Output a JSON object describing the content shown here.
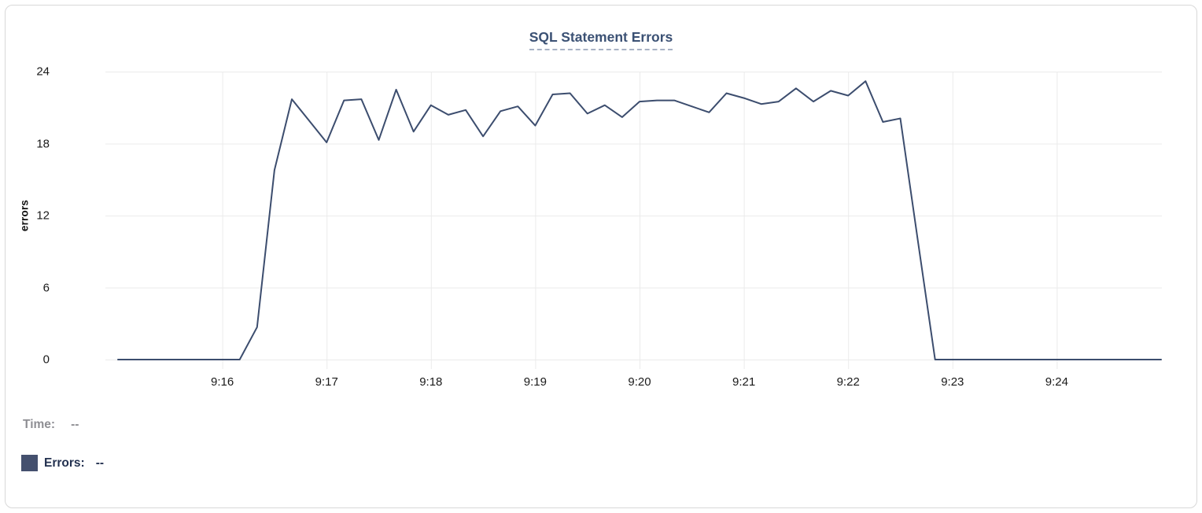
{
  "panel": {
    "title": "SQL Statement Errors"
  },
  "colors": {
    "line": "#3c4d6e",
    "grid": "#ebebeb",
    "title": "#3b5174",
    "title_underline": "#a8b2c4",
    "tick_text": "#1a1a1a",
    "tooltip_time_text": "#8e8e93",
    "tooltip_errors_text": "#233150",
    "legend_swatch": "#44506e",
    "card_border": "#d8d8d8"
  },
  "tooltip": {
    "time_label": "Time:",
    "time_value": "--",
    "errors_label": "Errors:",
    "errors_value": "--"
  },
  "chart_data": {
    "type": "line",
    "title": "SQL Statement Errors",
    "xlabel": "",
    "ylabel": "errors",
    "grid": true,
    "legend_position": "bottom-left",
    "ylim": [
      0,
      24
    ],
    "y_ticks": [
      0,
      6,
      12,
      18,
      24
    ],
    "x_tick_labels": [
      "9:16",
      "9:17",
      "9:18",
      "9:19",
      "9:20",
      "9:21",
      "9:22",
      "9:23",
      "9:24"
    ],
    "x_range": [
      "9:15:00",
      "9:25:00"
    ],
    "sample_interval_seconds": 10,
    "series": [
      {
        "name": "Errors",
        "x_start": "9:15:00",
        "values": [
          0,
          0,
          0,
          0,
          0,
          0,
          0,
          0,
          2.7,
          15.8,
          21.7,
          19.9,
          18.1,
          21.6,
          21.7,
          18.3,
          22.5,
          19.0,
          21.2,
          20.4,
          20.8,
          18.6,
          20.7,
          21.1,
          19.5,
          22.1,
          22.2,
          20.5,
          21.2,
          20.2,
          21.5,
          21.6,
          21.6,
          21.1,
          20.6,
          22.2,
          21.8,
          21.3,
          21.5,
          22.6,
          21.5,
          22.4,
          22.0,
          23.2,
          19.8,
          20.1,
          10.0,
          0,
          0,
          0,
          0,
          0,
          0,
          0,
          0,
          0,
          0,
          0,
          0,
          0,
          0
        ]
      }
    ]
  }
}
